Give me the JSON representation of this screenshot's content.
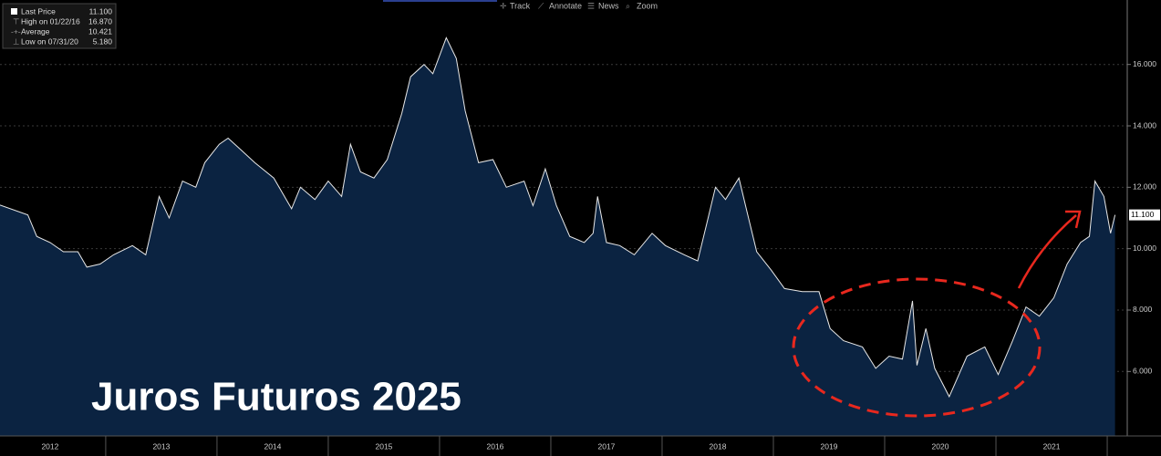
{
  "chart_data": {
    "type": "area",
    "title": "Juros Futuros 2025",
    "toolbar": [
      "Track",
      "Annotate",
      "News",
      "Zoom"
    ],
    "legend": [
      {
        "label": "Last Price",
        "value": "11.100"
      },
      {
        "label": "High on 01/22/16",
        "value": "16.870"
      },
      {
        "label": "Average",
        "value": "10.421"
      },
      {
        "label": "Low on 07/31/20",
        "value": "5.180"
      }
    ],
    "last_price_tag": "11.100",
    "line_color": "#e8e8e8",
    "fill_color": "#0b2341",
    "x": [
      2012.05,
      2012.3,
      2012.38,
      2012.5,
      2012.62,
      2012.75,
      2012.83,
      2012.95,
      2013.07,
      2013.24,
      2013.36,
      2013.48,
      2013.57,
      2013.69,
      2013.81,
      2013.89,
      2014.02,
      2014.1,
      2014.22,
      2014.34,
      2014.51,
      2014.67,
      2014.75,
      2014.88,
      2015.0,
      2015.12,
      2015.2,
      2015.29,
      2015.41,
      2015.53,
      2015.66,
      2015.74,
      2015.86,
      2015.94,
      2016.06,
      2016.15,
      2016.23,
      2016.35,
      2016.48,
      2016.6,
      2016.76,
      2016.84,
      2016.95,
      2017.05,
      2017.17,
      2017.3,
      2017.38,
      2017.42,
      2017.5,
      2017.62,
      2017.75,
      2017.91,
      2018.03,
      2018.2,
      2018.32,
      2018.4,
      2018.48,
      2018.57,
      2018.69,
      2018.77,
      2018.85,
      2018.98,
      2019.1,
      2019.26,
      2019.41,
      2019.51,
      2019.63,
      2019.8,
      2019.92,
      2020.04,
      2020.16,
      2020.25,
      2020.29,
      2020.37,
      2020.45,
      2020.58,
      2020.74,
      2020.9,
      2021.02,
      2021.15,
      2021.27,
      2021.39,
      2021.52,
      2021.64,
      2021.76,
      2021.84,
      2021.89,
      2021.97,
      2022.03,
      2022.07
    ],
    "series": [
      {
        "name": "Last Price",
        "values": [
          11.42,
          11.1,
          10.4,
          10.2,
          9.9,
          9.9,
          9.4,
          9.5,
          9.8,
          10.1,
          9.8,
          11.7,
          11.0,
          12.2,
          12.0,
          12.8,
          13.4,
          13.6,
          13.2,
          12.8,
          12.3,
          11.3,
          12.0,
          11.6,
          12.2,
          11.7,
          13.4,
          12.5,
          12.3,
          12.9,
          14.4,
          15.6,
          16.0,
          15.7,
          16.87,
          16.2,
          14.5,
          12.8,
          12.9,
          12.0,
          12.2,
          11.4,
          12.6,
          11.4,
          10.4,
          10.2,
          10.5,
          11.7,
          10.2,
          10.1,
          9.8,
          10.5,
          10.1,
          9.8,
          9.6,
          10.8,
          12.0,
          11.6,
          12.3,
          11.1,
          9.9,
          9.3,
          8.7,
          8.6,
          8.6,
          7.4,
          7.0,
          6.8,
          6.1,
          6.5,
          6.4,
          8.3,
          6.2,
          7.4,
          6.1,
          5.18,
          6.5,
          6.8,
          5.9,
          7.0,
          8.1,
          7.8,
          8.4,
          9.5,
          10.2,
          10.4,
          12.2,
          11.7,
          10.5,
          11.1
        ]
      }
    ],
    "xlim": [
      2012.05,
      2022.18
    ],
    "xticks": [
      {
        "value": 2012.5,
        "label": "2012"
      },
      {
        "value": 2013.5,
        "label": "2013"
      },
      {
        "value": 2014.5,
        "label": "2014"
      },
      {
        "value": 2015.5,
        "label": "2015"
      },
      {
        "value": 2016.5,
        "label": "2016"
      },
      {
        "value": 2017.5,
        "label": "2017"
      },
      {
        "value": 2018.5,
        "label": "2018"
      },
      {
        "value": 2019.5,
        "label": "2019"
      },
      {
        "value": 2020.5,
        "label": "2020"
      },
      {
        "value": 2021.5,
        "label": "2021"
      }
    ],
    "ylim": [
      3.9,
      18.1
    ],
    "yticks": [
      {
        "value": 6,
        "label": "6.000"
      },
      {
        "value": 8,
        "label": "8.000"
      },
      {
        "value": 10,
        "label": "10.000"
      },
      {
        "value": 12,
        "label": "12.000"
      },
      {
        "value": 14,
        "label": "14.000"
      },
      {
        "value": 16,
        "label": "16.000"
      }
    ],
    "grid": true
  }
}
